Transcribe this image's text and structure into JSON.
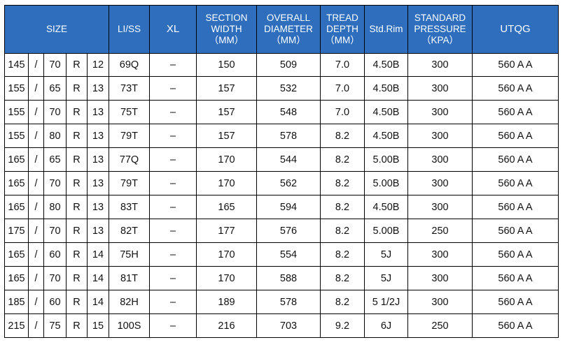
{
  "header": {
    "size": "SIZE",
    "li_ss": "LI/SS",
    "xl": "XL",
    "section_width": [
      "SECTION",
      "WIDTH",
      "（MM）"
    ],
    "overall_diameter": [
      "OVERALL",
      "DIAMETER",
      "（MM）"
    ],
    "tread_depth": [
      "TREAD",
      "DEPTH",
      "（MM）"
    ],
    "std_rim": "Std.Rim",
    "standard_pressure": [
      "STANDARD",
      "PRESSURE",
      "（KPA）"
    ],
    "utqg": "UTQG"
  },
  "rows": [
    {
      "width": "145",
      "sep": "/",
      "aspect": "70",
      "construction": "R",
      "rim": "12",
      "li_ss": "69Q",
      "xl": "–",
      "section_width": "150",
      "overall_diameter": "509",
      "tread_depth": "7.0",
      "std_rim": "4.50B",
      "pressure": "300",
      "utqg": "560 A A"
    },
    {
      "width": "155",
      "sep": "/",
      "aspect": "65",
      "construction": "R",
      "rim": "13",
      "li_ss": "73T",
      "xl": "–",
      "section_width": "157",
      "overall_diameter": "532",
      "tread_depth": "7.0",
      "std_rim": "4.50B",
      "pressure": "300",
      "utqg": "560 A A"
    },
    {
      "width": "155",
      "sep": "/",
      "aspect": "70",
      "construction": "R",
      "rim": "13",
      "li_ss": "75T",
      "xl": "–",
      "section_width": "157",
      "overall_diameter": "548",
      "tread_depth": "7.0",
      "std_rim": "4.50B",
      "pressure": "300",
      "utqg": "560 A A"
    },
    {
      "width": "155",
      "sep": "/",
      "aspect": "80",
      "construction": "R",
      "rim": "13",
      "li_ss": "79T",
      "xl": "–",
      "section_width": "157",
      "overall_diameter": "578",
      "tread_depth": "8.2",
      "std_rim": "4.50B",
      "pressure": "300",
      "utqg": "560 A A"
    },
    {
      "width": "165",
      "sep": "/",
      "aspect": "65",
      "construction": "R",
      "rim": "13",
      "li_ss": "77Q",
      "xl": "–",
      "section_width": "170",
      "overall_diameter": "544",
      "tread_depth": "8.2",
      "std_rim": "5.00B",
      "pressure": "300",
      "utqg": "560 A A"
    },
    {
      "width": "165",
      "sep": "/",
      "aspect": "70",
      "construction": "R",
      "rim": "13",
      "li_ss": "79T",
      "xl": "–",
      "section_width": "170",
      "overall_diameter": "562",
      "tread_depth": "8.2",
      "std_rim": "5.00B",
      "pressure": "300",
      "utqg": "560 A A"
    },
    {
      "width": "165",
      "sep": "/",
      "aspect": "80",
      "construction": "R",
      "rim": "13",
      "li_ss": "83T",
      "xl": "–",
      "section_width": "165",
      "overall_diameter": "594",
      "tread_depth": "8.2",
      "std_rim": "4.50B",
      "pressure": "300",
      "utqg": "560 A A"
    },
    {
      "width": "175",
      "sep": "/",
      "aspect": "70",
      "construction": "R",
      "rim": "13",
      "li_ss": "82T",
      "xl": "–",
      "section_width": "177",
      "overall_diameter": "576",
      "tread_depth": "8.2",
      "std_rim": "5.00B",
      "pressure": "250",
      "utqg": "560 A A"
    },
    {
      "width": "165",
      "sep": "/",
      "aspect": "60",
      "construction": "R",
      "rim": "14",
      "li_ss": "75H",
      "xl": "–",
      "section_width": "170",
      "overall_diameter": "554",
      "tread_depth": "8.2",
      "std_rim": "5J",
      "pressure": "300",
      "utqg": "560 A A"
    },
    {
      "width": "165",
      "sep": "/",
      "aspect": "70",
      "construction": "R",
      "rim": "14",
      "li_ss": "81T",
      "xl": "–",
      "section_width": "170",
      "overall_diameter": "588",
      "tread_depth": "8.2",
      "std_rim": "5J",
      "pressure": "300",
      "utqg": "560 A A"
    },
    {
      "width": "185",
      "sep": "/",
      "aspect": "60",
      "construction": "R",
      "rim": "14",
      "li_ss": "82H",
      "xl": "–",
      "section_width": "189",
      "overall_diameter": "578",
      "tread_depth": "8.2",
      "std_rim": "5 1/2J",
      "pressure": "300",
      "utqg": "560 A A"
    },
    {
      "width": "215",
      "sep": "/",
      "aspect": "75",
      "construction": "R",
      "rim": "15",
      "li_ss": "100S",
      "xl": "–",
      "section_width": "216",
      "overall_diameter": "703",
      "tread_depth": "9.2",
      "std_rim": "6J",
      "pressure": "250",
      "utqg": "560 A A"
    }
  ],
  "colors": {
    "header_background": "#2e6ebd",
    "header_text": "#ffffff",
    "grid_line": "#000000",
    "cell_text": "#111111"
  }
}
